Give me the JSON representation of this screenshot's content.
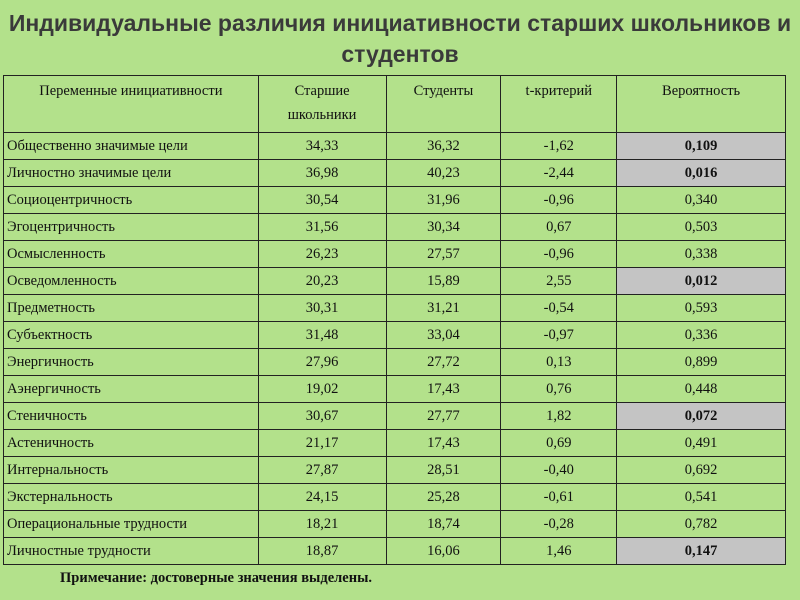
{
  "title": "Индивидуальные различия инициативности старших школьников и студентов",
  "table": {
    "headers": [
      "Переменные инициативности",
      "Старшие школьники",
      "Студенты",
      "t-критерий",
      "Вероятность"
    ],
    "rows": [
      {
        "name": "Общественно  значимые цели",
        "school": "34,33",
        "students": "36,32",
        "t": "-1,62",
        "p": "0,109",
        "highlighted": true
      },
      {
        "name": "Личностно  значимые цели",
        "school": "36,98",
        "students": "40,23",
        "t": "-2,44",
        "p": "0,016",
        "highlighted": true
      },
      {
        "name": "Социоцентричность",
        "school": "30,54",
        "students": "31,96",
        "t": "-0,96",
        "p": "0,340",
        "highlighted": false
      },
      {
        "name": "Эгоцентричность",
        "school": "31,56",
        "students": "30,34",
        "t": "0,67",
        "p": "0,503",
        "highlighted": false
      },
      {
        "name": "Осмысленность",
        "school": "26,23",
        "students": "27,57",
        "t": "-0,96",
        "p": "0,338",
        "highlighted": false
      },
      {
        "name": "Осведомленность",
        "school": "20,23",
        "students": "15,89",
        "t": "2,55",
        "p": "0,012",
        "highlighted": true
      },
      {
        "name": "Предметность",
        "school": "30,31",
        "students": "31,21",
        "t": "-0,54",
        "p": "0,593",
        "highlighted": false
      },
      {
        "name": "Субъектность",
        "school": "31,48",
        "students": "33,04",
        "t": "-0,97",
        "p": "0,336",
        "highlighted": false
      },
      {
        "name": "Энергичность",
        "school": "27,96",
        "students": "27,72",
        "t": "0,13",
        "p": "0,899",
        "highlighted": false
      },
      {
        "name": "Аэнергичность",
        "school": "19,02",
        "students": "17,43",
        "t": "0,76",
        "p": "0,448",
        "highlighted": false
      },
      {
        "name": "Стеничность",
        "school": "30,67",
        "students": "27,77",
        "t": "1,82",
        "p": "0,072",
        "highlighted": true
      },
      {
        "name": "Астеничность",
        "school": "21,17",
        "students": "17,43",
        "t": "0,69",
        "p": "0,491",
        "highlighted": false
      },
      {
        "name": "Интернальность",
        "school": "27,87",
        "students": "28,51",
        "t": "-0,40",
        "p": "0,692",
        "highlighted": false
      },
      {
        "name": "Экстернальность",
        "school": "24,15",
        "students": "25,28",
        "t": "-0,61",
        "p": "0,541",
        "highlighted": false
      },
      {
        "name": "Операциональные трудности",
        "school": "18,21",
        "students": "18,74",
        "t": "-0,28",
        "p": "0,782",
        "highlighted": false
      },
      {
        "name": "Личностные трудности",
        "school": "18,87",
        "students": "16,06",
        "t": "1,46",
        "p": "0,147",
        "highlighted": true
      }
    ]
  },
  "note": "Примечание: достоверные значения выделены.",
  "colors": {
    "background": "#b3e18b",
    "highlight": "#c4c4c4"
  }
}
